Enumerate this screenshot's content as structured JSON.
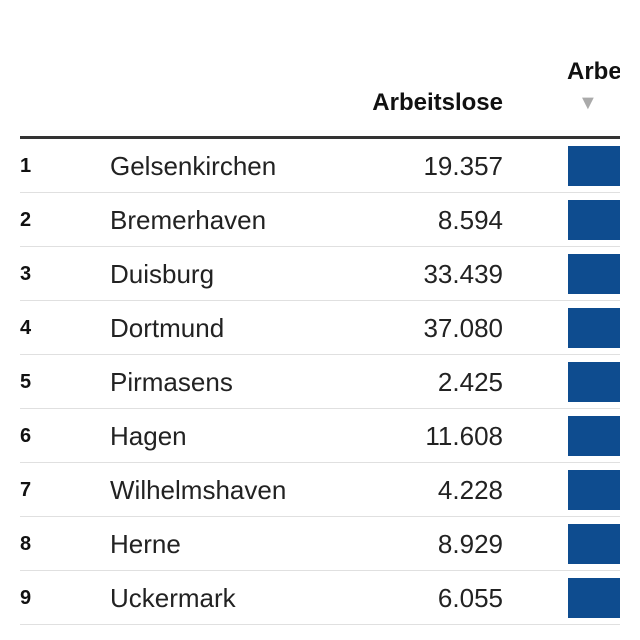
{
  "table": {
    "headers": {
      "value": "Arbeitslose",
      "cut": "Arbe"
    },
    "rows": [
      [
        "1",
        "Gelsenkirchen",
        "19.357"
      ],
      [
        "2",
        "Bremerhaven",
        "8.594"
      ],
      [
        "3",
        "Duisburg",
        "33.439"
      ],
      [
        "4",
        "Dortmund",
        "37.080"
      ],
      [
        "5",
        "Pirmasens",
        "2.425"
      ],
      [
        "6",
        "Hagen",
        "11.608"
      ],
      [
        "7",
        "Wilhelmshaven",
        "4.228"
      ],
      [
        "8",
        "Herne",
        "8.929"
      ],
      [
        "9",
        "Uckermark",
        "6.055"
      ]
    ]
  }
}
